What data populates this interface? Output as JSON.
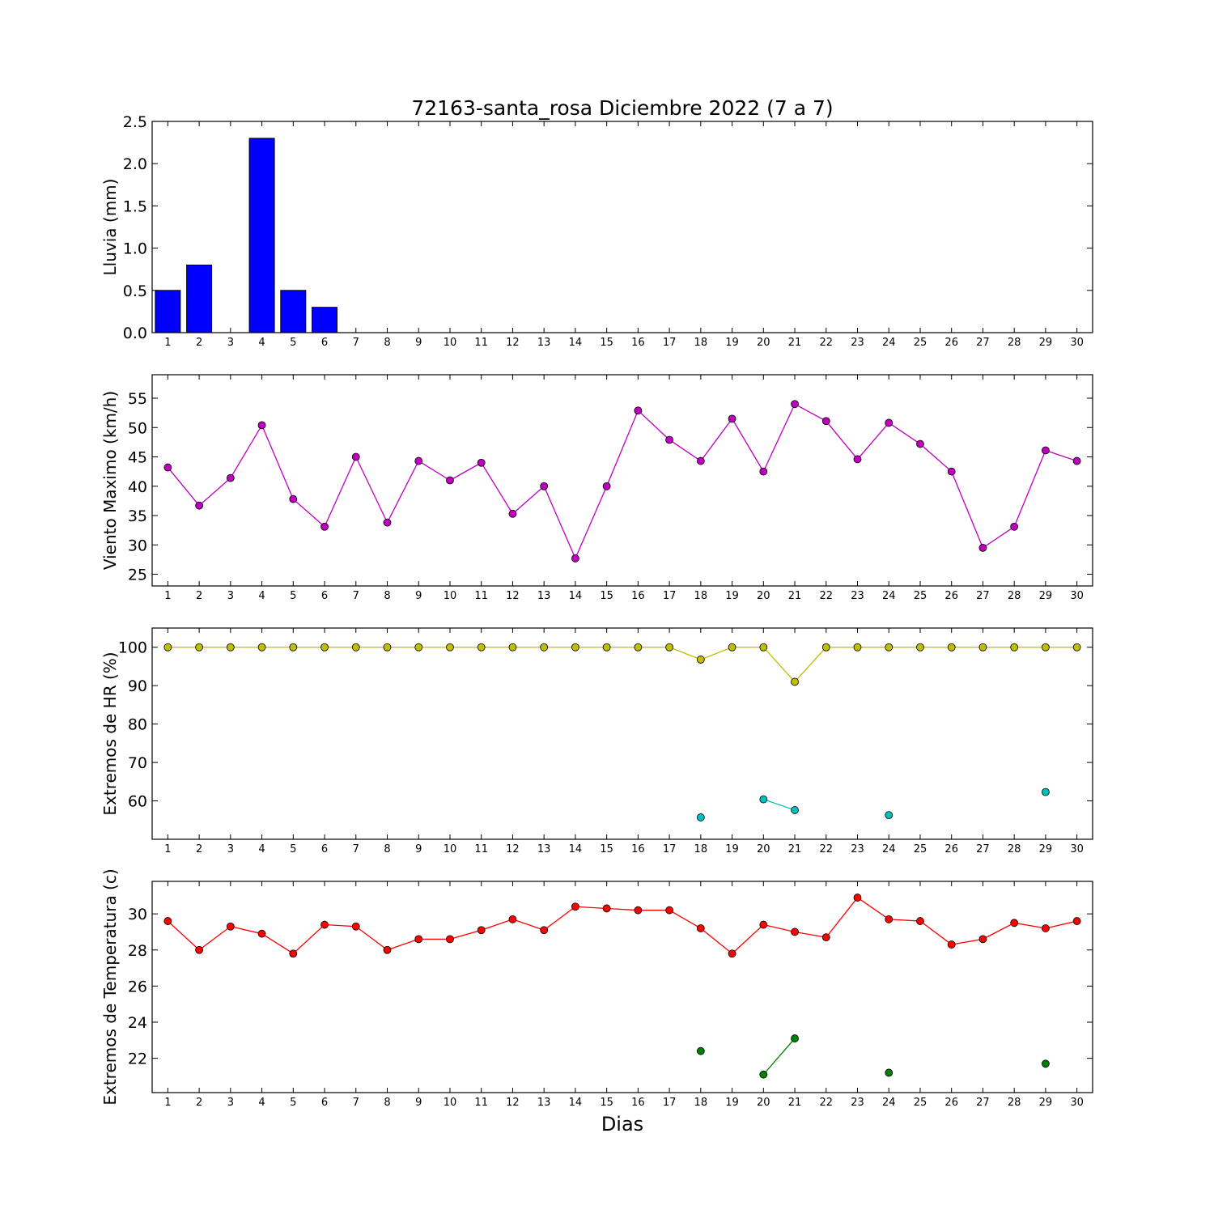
{
  "figure": {
    "title": "72163-santa_rosa Diciembre 2022  (7 a 7)",
    "xlabel": "Dias"
  },
  "chart_data": [
    {
      "type": "bar",
      "ylabel": "Lluvia (mm)",
      "ylim": [
        0,
        2.5
      ],
      "yticks": [
        0.0,
        0.5,
        1.0,
        1.5,
        2.0,
        2.5
      ],
      "ytick_decimals": 1,
      "xlim": [
        0.5,
        30.5
      ],
      "x": [
        1,
        2,
        3,
        4,
        5,
        6,
        7,
        8,
        9,
        10,
        11,
        12,
        13,
        14,
        15,
        16,
        17,
        18,
        19,
        20,
        21,
        22,
        23,
        24,
        25,
        26,
        27,
        28,
        29,
        30
      ],
      "series": [
        {
          "color": "#0000ff",
          "values": [
            0.5,
            0.8,
            0.0,
            2.3,
            0.5,
            0.3,
            0,
            0,
            0,
            0,
            0,
            0,
            0,
            0,
            0,
            0,
            0,
            0,
            0,
            0,
            0,
            0,
            0,
            0,
            0,
            0,
            0,
            0,
            0,
            0
          ]
        }
      ]
    },
    {
      "type": "line",
      "ylabel": "Viento Maximo (km/h)",
      "ylim": [
        23,
        59
      ],
      "yticks": [
        25,
        30,
        35,
        40,
        45,
        50,
        55
      ],
      "ytick_decimals": 0,
      "xlim": [
        0.5,
        30.5
      ],
      "x": [
        1,
        2,
        3,
        4,
        5,
        6,
        7,
        8,
        9,
        10,
        11,
        12,
        13,
        14,
        15,
        16,
        17,
        18,
        19,
        20,
        21,
        22,
        23,
        24,
        25,
        26,
        27,
        28,
        29,
        30
      ],
      "series": [
        {
          "color": "#bf00bf",
          "values": [
            43.2,
            36.7,
            41.4,
            50.4,
            37.8,
            33.1,
            45.0,
            33.8,
            44.3,
            41.0,
            44.0,
            35.3,
            40.0,
            27.7,
            40.0,
            52.9,
            47.9,
            44.3,
            51.5,
            42.5,
            54.0,
            51.1,
            44.6,
            50.8,
            47.2,
            42.5,
            29.5,
            33.1,
            46.1,
            44.3
          ]
        }
      ]
    },
    {
      "type": "line",
      "ylabel": "Extremos de HR (%)",
      "ylim": [
        50,
        105
      ],
      "yticks": [
        60,
        70,
        80,
        90,
        100
      ],
      "ytick_decimals": 0,
      "xlim": [
        0.5,
        30.5
      ],
      "x": [
        1,
        2,
        3,
        4,
        5,
        6,
        7,
        8,
        9,
        10,
        11,
        12,
        13,
        14,
        15,
        16,
        17,
        18,
        19,
        20,
        21,
        22,
        23,
        24,
        25,
        26,
        27,
        28,
        29,
        30
      ],
      "series": [
        {
          "color": "#bfbf00",
          "values": [
            100,
            100,
            100,
            100,
            100,
            100,
            100,
            100,
            100,
            100,
            100,
            100,
            100,
            100,
            100,
            100,
            100,
            96.8,
            100,
            100,
            91.0,
            100,
            100,
            100,
            100,
            100,
            100,
            100,
            100,
            100
          ]
        },
        {
          "color": "#00bfbf",
          "values": [
            null,
            null,
            null,
            null,
            null,
            null,
            null,
            null,
            null,
            null,
            null,
            null,
            null,
            null,
            null,
            null,
            null,
            55.7,
            null,
            60.4,
            57.6,
            null,
            null,
            56.3,
            null,
            null,
            null,
            null,
            62.3,
            null
          ]
        }
      ]
    },
    {
      "type": "line",
      "ylabel": "Extremos de Temperatura (c)",
      "ylim": [
        20.1,
        31.8
      ],
      "yticks": [
        22,
        24,
        26,
        28,
        30
      ],
      "ytick_decimals": 0,
      "xlim": [
        0.5,
        30.5
      ],
      "x": [
        1,
        2,
        3,
        4,
        5,
        6,
        7,
        8,
        9,
        10,
        11,
        12,
        13,
        14,
        15,
        16,
        17,
        18,
        19,
        20,
        21,
        22,
        23,
        24,
        25,
        26,
        27,
        28,
        29,
        30
      ],
      "series": [
        {
          "color": "#ff0000",
          "values": [
            29.6,
            28.0,
            29.3,
            28.9,
            27.8,
            29.4,
            29.3,
            28.0,
            28.6,
            28.6,
            29.1,
            29.7,
            29.1,
            30.4,
            30.3,
            30.2,
            30.2,
            29.2,
            27.8,
            29.4,
            29.0,
            28.7,
            30.9,
            29.7,
            29.6,
            28.3,
            28.6,
            29.5,
            29.2,
            29.6
          ]
        },
        {
          "color": "#008000",
          "values": [
            null,
            null,
            null,
            null,
            null,
            null,
            null,
            null,
            null,
            null,
            null,
            null,
            null,
            null,
            null,
            null,
            null,
            22.4,
            null,
            21.1,
            23.1,
            null,
            null,
            21.2,
            null,
            null,
            null,
            null,
            21.7,
            null
          ]
        }
      ]
    }
  ]
}
